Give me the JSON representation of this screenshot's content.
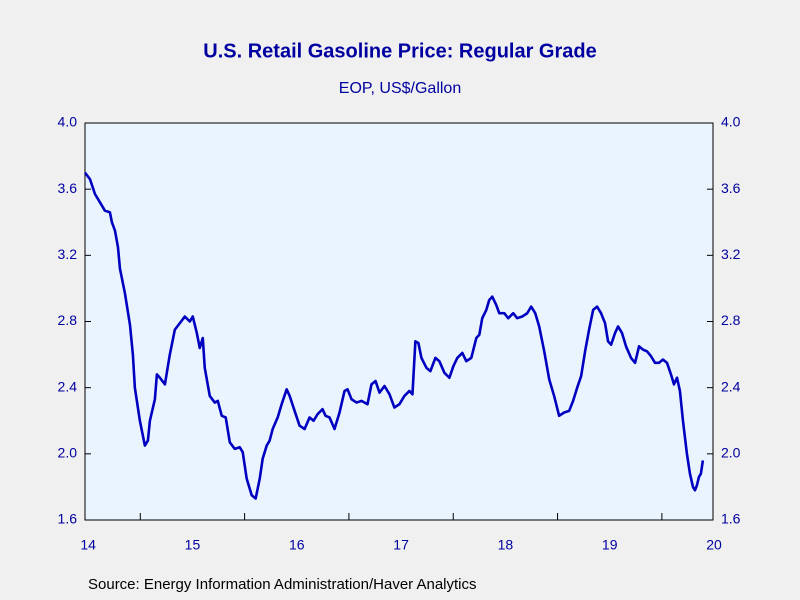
{
  "chart_data": {
    "type": "line",
    "title": "U.S. Retail Gasoline Price: Regular Grade",
    "subtitle": "EOP, US$/Gallon",
    "source": "Source:  Energy Information Administration/Haver Analytics",
    "xlim": [
      2014.47,
      2020.49
    ],
    "xticks": [
      {
        "value": 2014.5,
        "label": "14"
      },
      {
        "value": 2015.5,
        "label": "15"
      },
      {
        "value": 2016.5,
        "label": "16"
      },
      {
        "value": 2017.5,
        "label": "17"
      },
      {
        "value": 2018.5,
        "label": "18"
      },
      {
        "value": 2019.5,
        "label": "19"
      },
      {
        "value": 2020.5,
        "label": "20"
      }
    ],
    "ylim": [
      1.6,
      4.0
    ],
    "yticks": [
      {
        "value": 1.6,
        "label": "1.6"
      },
      {
        "value": 2.0,
        "label": "2.0"
      },
      {
        "value": 2.4,
        "label": "2.4"
      },
      {
        "value": 2.8,
        "label": "2.8"
      },
      {
        "value": 3.2,
        "label": "3.2"
      },
      {
        "value": 3.6,
        "label": "3.6"
      },
      {
        "value": 4.0,
        "label": "4.0"
      }
    ],
    "grid": false,
    "x": [
      2014.47,
      2014.518,
      2014.566,
      2014.614,
      2014.661,
      2014.709,
      2014.728,
      2014.757,
      2014.786,
      2014.805,
      2014.853,
      2014.901,
      2014.929,
      2014.948,
      2014.996,
      2015.044,
      2015.073,
      2015.092,
      2015.14,
      2015.159,
      2015.188,
      2015.236,
      2015.283,
      2015.331,
      2015.379,
      2015.427,
      2015.475,
      2015.503,
      2015.542,
      2015.57,
      2015.599,
      2015.618,
      2015.666,
      2015.714,
      2015.743,
      2015.781,
      2015.819,
      2015.858,
      2015.905,
      2015.953,
      2015.982,
      2016.02,
      2016.068,
      2016.106,
      2016.145,
      2016.173,
      2016.212,
      2016.24,
      2016.269,
      2016.317,
      2016.355,
      2016.403,
      2016.432,
      2016.479,
      2016.527,
      2016.575,
      2016.623,
      2016.661,
      2016.7,
      2016.747,
      2016.776,
      2016.814,
      2016.862,
      2016.91,
      2016.958,
      2016.987,
      2017.025,
      2017.073,
      2017.121,
      2017.178,
      2017.216,
      2017.255,
      2017.293,
      2017.341,
      2017.389,
      2017.436,
      2017.484,
      2017.532,
      2017.58,
      2017.609,
      2017.637,
      2017.666,
      2017.695,
      2017.743,
      2017.781,
      2017.829,
      2017.867,
      2017.915,
      2017.963,
      2018.001,
      2018.039,
      2018.087,
      2018.125,
      2018.173,
      2018.221,
      2018.25,
      2018.278,
      2018.317,
      2018.345,
      2018.374,
      2018.412,
      2018.441,
      2018.489,
      2018.527,
      2018.575,
      2018.613,
      2018.661,
      2018.709,
      2018.747,
      2018.786,
      2018.824,
      2018.872,
      2018.92,
      2018.967,
      2019.015,
      2019.063,
      2019.111,
      2019.149,
      2019.188,
      2019.226,
      2019.264,
      2019.302,
      2019.341,
      2019.379,
      2019.417,
      2019.455,
      2019.484,
      2019.513,
      2019.551,
      2019.58,
      2019.618,
      2019.656,
      2019.704,
      2019.743,
      2019.781,
      2019.819,
      2019.857,
      2019.896,
      2019.934,
      2019.972,
      2020.01,
      2020.049,
      2020.087,
      2020.116,
      2020.145,
      2020.173,
      2020.202,
      2020.24,
      2020.269,
      2020.298,
      2020.317,
      2020.336,
      2020.355,
      2020.374,
      2020.393
    ],
    "series": [
      {
        "color": "#0000c0",
        "values": [
          3.7,
          3.66,
          3.57,
          3.52,
          3.47,
          3.46,
          3.4,
          3.35,
          3.25,
          3.12,
          2.97,
          2.78,
          2.6,
          2.4,
          2.2,
          2.05,
          2.08,
          2.2,
          2.33,
          2.48,
          2.46,
          2.42,
          2.6,
          2.75,
          2.79,
          2.83,
          2.8,
          2.83,
          2.73,
          2.64,
          2.7,
          2.52,
          2.35,
          2.31,
          2.32,
          2.23,
          2.22,
          2.07,
          2.03,
          2.04,
          2.01,
          1.85,
          1.75,
          1.73,
          1.85,
          1.97,
          2.05,
          2.08,
          2.15,
          2.22,
          2.3,
          2.39,
          2.35,
          2.26,
          2.17,
          2.15,
          2.22,
          2.2,
          2.24,
          2.27,
          2.23,
          2.22,
          2.15,
          2.25,
          2.38,
          2.39,
          2.33,
          2.31,
          2.32,
          2.3,
          2.42,
          2.44,
          2.37,
          2.41,
          2.36,
          2.28,
          2.3,
          2.35,
          2.38,
          2.36,
          2.68,
          2.67,
          2.58,
          2.52,
          2.5,
          2.58,
          2.56,
          2.49,
          2.46,
          2.53,
          2.58,
          2.61,
          2.56,
          2.58,
          2.7,
          2.72,
          2.82,
          2.87,
          2.93,
          2.95,
          2.9,
          2.85,
          2.85,
          2.82,
          2.85,
          2.82,
          2.83,
          2.85,
          2.89,
          2.85,
          2.77,
          2.62,
          2.45,
          2.35,
          2.23,
          2.25,
          2.26,
          2.32,
          2.4,
          2.47,
          2.62,
          2.75,
          2.87,
          2.89,
          2.85,
          2.79,
          2.68,
          2.66,
          2.73,
          2.77,
          2.73,
          2.65,
          2.58,
          2.55,
          2.65,
          2.63,
          2.62,
          2.59,
          2.55,
          2.55,
          2.57,
          2.55,
          2.48,
          2.42,
          2.46,
          2.38,
          2.2,
          2.0,
          1.88,
          1.8,
          1.78,
          1.81,
          1.86,
          1.88,
          1.96
        ]
      }
    ]
  }
}
